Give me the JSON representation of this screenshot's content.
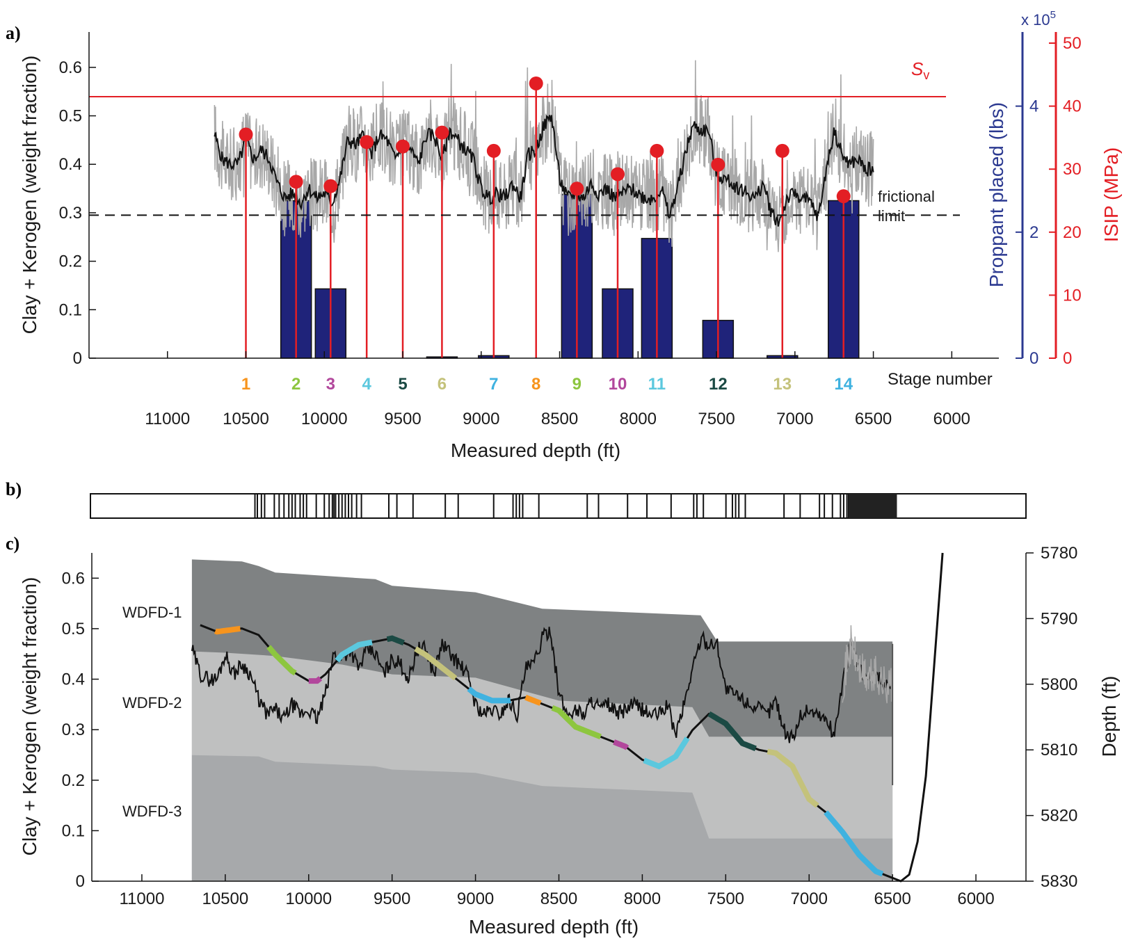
{
  "colors": {
    "proppant_bar": "#1f237a",
    "isip_red": "#e31e24",
    "raw_log": "#a8a8a8",
    "smoothed_log": "#111111",
    "layer_WDFD_1": "#7f8283",
    "layer_WDFD_2": "#bfc0c0",
    "layer_WDFD_3": "#a7a9ab",
    "right_axis_blue": "#2b3990"
  },
  "chart_data": [
    {
      "panel": "a)",
      "type": "bar",
      "xlabel": "Measured depth (ft)",
      "x_ticks": [
        11000,
        10500,
        10000,
        9500,
        9000,
        8500,
        8000,
        7500,
        7000,
        6500,
        6000
      ],
      "xlim": [
        11500,
        5700
      ],
      "ylabel_left": "Clay + Kerogen (weight fraction)",
      "ylim_left": [
        0,
        0.65
      ],
      "y_ticks_left": [
        0,
        0.1,
        0.2,
        0.3,
        0.4,
        0.5,
        0.6
      ],
      "ylabel_right_blue": "Proppant placed (lbs)",
      "right_blue_multiplier": "x 10",
      "right_blue_exponent": "5",
      "ylim_right_blue": [
        0,
        5
      ],
      "y_ticks_right_blue": [
        0,
        2,
        4
      ],
      "ylabel_right_red": "ISIP (MPa)",
      "ylim_right_red": [
        0,
        50
      ],
      "y_ticks_right_red": [
        0,
        10,
        20,
        30,
        40,
        50
      ],
      "stage_row_label": "Stage number",
      "stages": [
        {
          "label": "1",
          "depth": 10500,
          "proppant": 0,
          "isip": 35.5,
          "color": "#f7941d"
        },
        {
          "label": "2",
          "depth": 10180,
          "proppant": 2.5,
          "isip": 28.0,
          "color": "#8dc63f"
        },
        {
          "label": "3",
          "depth": 9960,
          "proppant": 1.1,
          "isip": 27.3,
          "color": "#b2479c"
        },
        {
          "label": "4",
          "depth": 9730,
          "proppant": 0,
          "isip": 34.3,
          "color": "#5bc8de"
        },
        {
          "label": "5",
          "depth": 9500,
          "proppant": 0,
          "isip": 33.6,
          "color": "#1b4a44"
        },
        {
          "label": "6",
          "depth": 9250,
          "proppant": 0.02,
          "isip": 35.8,
          "color": "#c4c27b"
        },
        {
          "label": "7",
          "depth": 8920,
          "proppant": 0.04,
          "isip": 32.9,
          "color": "#3fb2e0"
        },
        {
          "label": "8",
          "depth": 8650,
          "proppant": 0,
          "isip": 43.6,
          "color": "#f7941d"
        },
        {
          "label": "9",
          "depth": 8390,
          "proppant": 2.6,
          "isip": 26.9,
          "color": "#8dc63f"
        },
        {
          "label": "10",
          "depth": 8130,
          "proppant": 1.1,
          "isip": 29.2,
          "color": "#b2479c"
        },
        {
          "label": "11",
          "depth": 7880,
          "proppant": 1.9,
          "isip": 32.9,
          "color": "#5bc8de"
        },
        {
          "label": "12",
          "depth": 7490,
          "proppant": 0.6,
          "isip": 30.7,
          "color": "#1b4a44"
        },
        {
          "label": "13",
          "depth": 7080,
          "proppant": 0.04,
          "isip": 32.9,
          "color": "#c4c27b"
        },
        {
          "label": "14",
          "depth": 6690,
          "proppant": 2.5,
          "isip": 25.7,
          "color": "#3fb2e0"
        }
      ],
      "log_profile": {
        "depth": [
          10700,
          10650,
          10600,
          10550,
          10500,
          10450,
          10400,
          10350,
          10300,
          10250,
          10200,
          10150,
          10100,
          10050,
          10000,
          9950,
          9900,
          9850,
          9800,
          9750,
          9700,
          9650,
          9600,
          9550,
          9500,
          9450,
          9400,
          9350,
          9300,
          9250,
          9200,
          9150,
          9100,
          9050,
          9000,
          8950,
          8900,
          8850,
          8800,
          8750,
          8700,
          8650,
          8600,
          8550,
          8500,
          8450,
          8400,
          8350,
          8300,
          8250,
          8200,
          8150,
          8100,
          8050,
          8000,
          7950,
          7900,
          7850,
          7800,
          7750,
          7700,
          7650,
          7600,
          7550,
          7500,
          7450,
          7400,
          7350,
          7300,
          7250,
          7200,
          7150,
          7100,
          7050,
          7000,
          6950,
          6900,
          6850,
          6800,
          6750,
          6700,
          6650,
          6600,
          6550,
          6500
        ],
        "value": [
          0.46,
          0.41,
          0.4,
          0.4,
          0.45,
          0.41,
          0.43,
          0.41,
          0.36,
          0.33,
          0.34,
          0.32,
          0.35,
          0.33,
          0.34,
          0.32,
          0.37,
          0.45,
          0.44,
          0.46,
          0.42,
          0.46,
          0.45,
          0.41,
          0.44,
          0.43,
          0.4,
          0.46,
          0.46,
          0.41,
          0.47,
          0.45,
          0.43,
          0.41,
          0.35,
          0.33,
          0.34,
          0.33,
          0.36,
          0.33,
          0.42,
          0.43,
          0.48,
          0.5,
          0.37,
          0.33,
          0.34,
          0.33,
          0.36,
          0.34,
          0.35,
          0.33,
          0.34,
          0.35,
          0.34,
          0.33,
          0.33,
          0.35,
          0.29,
          0.35,
          0.42,
          0.48,
          0.47,
          0.47,
          0.38,
          0.37,
          0.36,
          0.35,
          0.34,
          0.33,
          0.36,
          0.3,
          0.28,
          0.33,
          0.34,
          0.33,
          0.32,
          0.29,
          0.39,
          0.47,
          0.42,
          0.4,
          0.41,
          0.39,
          0.39
        ]
      },
      "annotations": {
        "sv_symbol": "S",
        "sv_subscript": "v",
        "sv_isip": 41.5,
        "frictional_limit_value": 0.295,
        "frictional_limit_line1": "frictional",
        "frictional_limit_line2": "limit"
      }
    },
    {
      "panel": "b)",
      "type": "table",
      "description_values_depth": [
        10480,
        10465,
        10440,
        10420,
        10360,
        10330,
        10300,
        10270,
        10250,
        10230,
        10200,
        10180,
        10160,
        10100,
        10050,
        10020,
        10000,
        9990,
        9980,
        9960,
        9940,
        9920,
        9900,
        9880,
        9850,
        9820,
        9650,
        9600,
        9500,
        9300,
        9220,
        9000,
        8880,
        8860,
        8840,
        8820,
        8720,
        8420,
        8350,
        8170,
        8050,
        7900,
        7760,
        7740,
        7700,
        7560,
        7520,
        7500,
        7480,
        7440,
        7200,
        7100,
        6980,
        6950,
        6900,
        6850,
        6830,
        6810,
        6800
      ]
    },
    {
      "panel": "c)",
      "type": "area",
      "xlabel": "Measured depth (ft)",
      "x_ticks": [
        11000,
        10500,
        10000,
        9500,
        9000,
        8500,
        8000,
        7500,
        7000,
        6500,
        6000
      ],
      "xlim": [
        11300,
        5700
      ],
      "ylabel_left": "Clay + Kerogen (weight fraction)",
      "ylim_left": [
        0,
        0.65
      ],
      "y_ticks_left": [
        0,
        0.1,
        0.2,
        0.3,
        0.4,
        0.5,
        0.6
      ],
      "ylabel_right": "Depth (ft)",
      "ylim_right": [
        5830,
        5780
      ],
      "y_ticks_right": [
        5780,
        5790,
        5800,
        5810,
        5820,
        5830
      ],
      "layers": [
        {
          "name": "WDFD-1",
          "top_depth_x": [
            10700,
            10400,
            10300,
            10200,
            9600,
            9500,
            9000,
            8600,
            7650,
            7550,
            6500
          ],
          "top_tvd": [
            5781.0,
            5781.3,
            5782.0,
            5783.0,
            5784.0,
            5785.0,
            5786.0,
            5788.5,
            5789.5,
            5793.5,
            5793.5
          ]
        },
        {
          "name": "WDFD-2",
          "top_depth_x": [
            10700,
            10500,
            10200,
            9800,
            9500,
            9000,
            8500,
            7700,
            7600,
            6500
          ],
          "top_tvd": [
            5795.0,
            5795.2,
            5795.7,
            5797.0,
            5798.5,
            5799.0,
            5802.5,
            5803.5,
            5808.0,
            5808.0
          ]
        },
        {
          "name": "WDFD-3",
          "top_depth_x": [
            10700,
            10300,
            10200,
            9600,
            9500,
            9000,
            8600,
            7700,
            7600,
            6500
          ],
          "top_tvd": [
            5810.8,
            5811.0,
            5811.8,
            5812.5,
            5813.0,
            5813.5,
            5815.5,
            5816.5,
            5823.5,
            5823.5
          ]
        }
      ],
      "wellbore_trajectory": {
        "depth": [
          10650,
          10550,
          10400,
          10300,
          10200,
          10100,
          10000,
          9950,
          9900,
          9800,
          9700,
          9600,
          9500,
          9400,
          9300,
          9200,
          9100,
          9000,
          8900,
          8800,
          8700,
          8600,
          8500,
          8400,
          8300,
          8200,
          8100,
          8000,
          7900,
          7800,
          7700,
          7600,
          7500,
          7400,
          7300,
          7200,
          7100,
          7000,
          6900,
          6800,
          6700,
          6600,
          6500,
          6450,
          6400,
          6350,
          6300,
          6250,
          6200
        ],
        "tvd": [
          5791.0,
          5792.0,
          5791.5,
          5792.5,
          5795.5,
          5798.0,
          5799.5,
          5799.5,
          5798.5,
          5795.5,
          5794.0,
          5793.5,
          5793.0,
          5794.0,
          5795.5,
          5797.5,
          5799.5,
          5801.5,
          5802.5,
          5802.5,
          5802.0,
          5803.0,
          5804.0,
          5806.5,
          5807.5,
          5808.5,
          5809.5,
          5811.5,
          5812.5,
          5811.0,
          5807.0,
          5804.5,
          5806.0,
          5809.0,
          5810.0,
          5810.5,
          5812.5,
          5817.5,
          5819.5,
          5822.5,
          5826.0,
          5828.5,
          5829.5,
          5830.0,
          5829.0,
          5824.0,
          5814.0,
          5797.0,
          5780.0
        ]
      },
      "stage_segments": [
        {
          "from": 10560,
          "to": 10410,
          "color": "#f7941d"
        },
        {
          "from": 10240,
          "to": 10080,
          "color": "#8dc63f"
        },
        {
          "from": 10000,
          "to": 9930,
          "color": "#b2479c"
        },
        {
          "from": 9830,
          "to": 9620,
          "color": "#5bc8de"
        },
        {
          "from": 9530,
          "to": 9430,
          "color": "#1b4a44"
        },
        {
          "from": 9360,
          "to": 9120,
          "color": "#c4c27b"
        },
        {
          "from": 9040,
          "to": 8790,
          "color": "#3fb2e0"
        },
        {
          "from": 8700,
          "to": 8610,
          "color": "#f7941d"
        },
        {
          "from": 8540,
          "to": 8250,
          "color": "#8dc63f"
        },
        {
          "from": 8170,
          "to": 8090,
          "color": "#b2479c"
        },
        {
          "from": 7990,
          "to": 7730,
          "color": "#5bc8de"
        },
        {
          "from": 7600,
          "to": 7320,
          "color": "#1b4a44"
        },
        {
          "from": 7250,
          "to": 6950,
          "color": "#c4c27b"
        },
        {
          "from": 6900,
          "to": 6560,
          "color": "#3fb2e0"
        }
      ]
    }
  ]
}
